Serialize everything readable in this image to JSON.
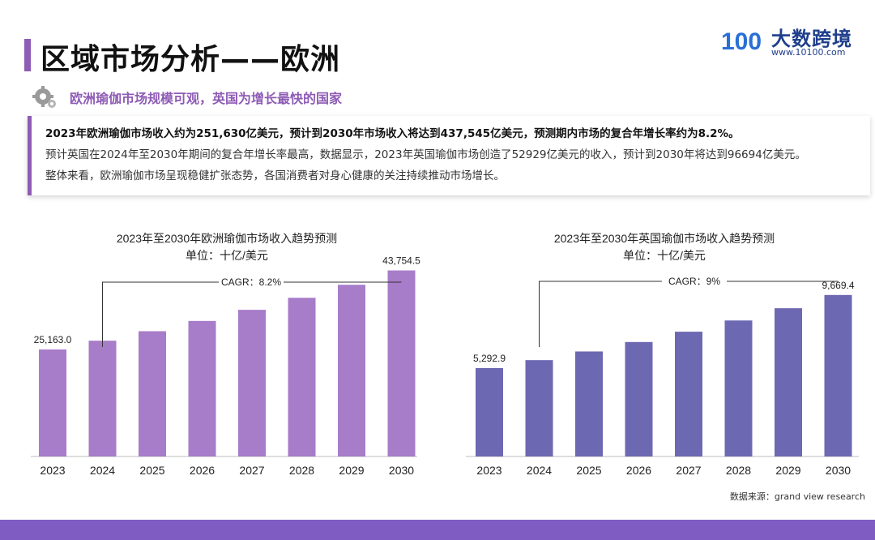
{
  "page": {
    "title": "区域市场分析——欧洲",
    "subtitle": "欧洲瑜伽市场规模可观，英国为增长最快的国家",
    "summary": [
      "2023年欧洲瑜伽市场收入约为251,630亿美元，预计到2030年市场收入将达到437,545亿美元，预测期内市场的复合年增长率约为8.2%。",
      "预计英国在2024年至2030年期间的复合年增长率最高，数据显示，2023年英国瑜伽市场创造了52929亿美元的收入，预计到2030年将达到96694亿美元。",
      "整体来看，欧洲瑜伽市场呈现稳健扩张态势，各国消费者对身心健康的关注持续推动市场增长。"
    ],
    "source": "数据来源：grand view research"
  },
  "logo": {
    "mark": "100",
    "name": "大数跨境",
    "url": "www.10100.com"
  },
  "colors": {
    "accent": "#8e5bb5",
    "europe_bar": "#a77cc9",
    "uk_bar": "#6d68b2",
    "footer": "#7f5cc2"
  },
  "chart_data": [
    {
      "type": "bar",
      "title": "2023年至2030年欧洲瑜伽市场收入趋势预测",
      "unit": "单位：十亿/美元",
      "categories": [
        "2023",
        "2024",
        "2025",
        "2026",
        "2027",
        "2028",
        "2029",
        "2030"
      ],
      "values": [
        25163.0,
        27227,
        29460,
        31875,
        34489,
        37317,
        40377,
        43754.5
      ],
      "data_labels": {
        "0": "25,163.0",
        "7": "43,754.5"
      },
      "annotation": "CAGR：8.2%",
      "ylim": [
        0,
        45000
      ]
    },
    {
      "type": "bar",
      "title": "2023年至2030年英国瑜伽市场收入趋势预测",
      "unit": "单位：十亿/美元",
      "categories": [
        "2023",
        "2024",
        "2025",
        "2026",
        "2027",
        "2028",
        "2029",
        "2030"
      ],
      "values": [
        5292.9,
        5769,
        6288,
        6854,
        7471,
        8143,
        8876,
        9669.4
      ],
      "data_labels": {
        "0": "5,292.9",
        "7": "9,669.4"
      },
      "annotation": "CAGR：9%",
      "ylim": [
        0,
        10000
      ]
    }
  ]
}
